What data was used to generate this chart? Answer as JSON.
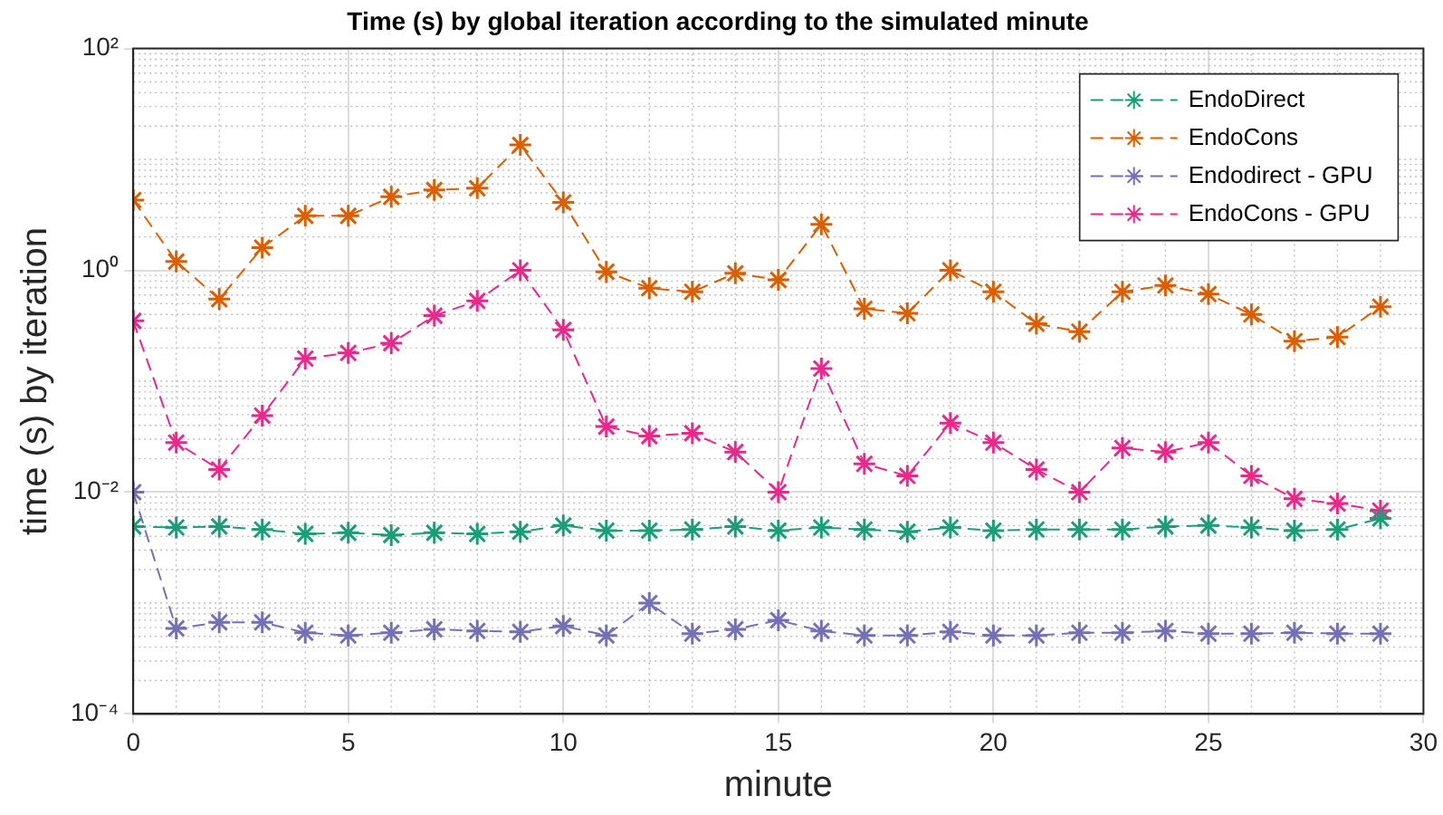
{
  "chart_data": {
    "type": "line",
    "title": "Time (s) by global iteration according to the simulated minute",
    "xlabel": "minute",
    "ylabel": "time (s) by iteration",
    "x": [
      0,
      1,
      2,
      3,
      4,
      5,
      6,
      7,
      8,
      9,
      10,
      11,
      12,
      13,
      14,
      15,
      16,
      17,
      18,
      19,
      20,
      21,
      22,
      23,
      24,
      25,
      26,
      27,
      28,
      29
    ],
    "series": [
      {
        "name": "EndoDirect",
        "color": "#1b9e77",
        "values": [
          0.0049,
          0.0048,
          0.0049,
          0.0046,
          0.0042,
          0.0043,
          0.0041,
          0.0043,
          0.0042,
          0.0044,
          0.005,
          0.0045,
          0.0045,
          0.0046,
          0.0049,
          0.0045,
          0.0048,
          0.0046,
          0.0044,
          0.0048,
          0.0045,
          0.0046,
          0.0046,
          0.0046,
          0.0049,
          0.005,
          0.0048,
          0.0045,
          0.0046,
          0.0058
        ]
      },
      {
        "name": "EndoCons",
        "color": "#d95f02",
        "values": [
          4.3,
          1.2,
          0.55,
          1.6,
          3.1,
          3.1,
          4.6,
          5.3,
          5.5,
          13.5,
          4.1,
          0.97,
          0.69,
          0.64,
          0.94,
          0.82,
          2.6,
          0.45,
          0.41,
          1.0,
          0.64,
          0.33,
          0.28,
          0.64,
          0.73,
          0.61,
          0.4,
          0.23,
          0.25,
          0.47
        ]
      },
      {
        "name": "Endodirect - GPU",
        "color": "#7570b3",
        "values": [
          0.01,
          0.00059,
          0.00067,
          0.00067,
          0.00054,
          0.00051,
          0.00054,
          0.00058,
          0.00056,
          0.00055,
          0.00062,
          0.00051,
          0.001,
          0.00053,
          0.00058,
          0.0007,
          0.00056,
          0.00051,
          0.00051,
          0.00055,
          0.00051,
          0.00051,
          0.00054,
          0.00054,
          0.00056,
          0.00053,
          0.00053,
          0.00054,
          0.00053,
          0.00053
        ]
      },
      {
        "name": "EndoCons - GPU",
        "color": "#e7298a",
        "values": [
          0.35,
          0.028,
          0.016,
          0.049,
          0.16,
          0.18,
          0.22,
          0.39,
          0.53,
          1.0,
          0.29,
          0.039,
          0.032,
          0.034,
          0.023,
          0.01,
          0.13,
          0.018,
          0.014,
          0.042,
          0.028,
          0.016,
          0.01,
          0.025,
          0.023,
          0.028,
          0.014,
          0.0087,
          0.0079,
          0.0068
        ]
      }
    ],
    "xlim": [
      0,
      30
    ],
    "xticks": [
      0,
      5,
      10,
      15,
      20,
      25,
      30
    ],
    "ylim": [
      0.0001,
      100
    ],
    "yticks": [
      {
        "value": 0.0001,
        "label": "10⁻⁴"
      },
      {
        "value": 0.01,
        "label": "10⁻²"
      },
      {
        "value": 1,
        "label": "10⁰"
      },
      {
        "value": 100,
        "label": "10²"
      }
    ],
    "log": "y",
    "grid": true,
    "legend": "top right",
    "marker": "cross",
    "line_style": "dashed"
  }
}
